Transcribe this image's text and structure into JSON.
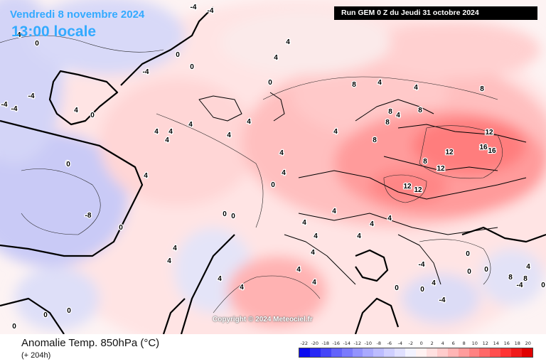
{
  "header": {
    "valid_date": "Vendredi 8 novembre 2024",
    "local_time": "13:00 locale",
    "run_info": "Run GEM 0 Z du Jeudi 31 octobre 2024"
  },
  "map": {
    "copyright": "Copyright © 2024 Meteociel.fr",
    "contour_labels": [
      "-4",
      "-4",
      "0",
      "0",
      "-4",
      "4",
      "-4",
      "0",
      "4",
      "0",
      "4",
      "-4",
      "-4",
      "-4",
      "-8",
      "4",
      "4",
      "0",
      "0",
      "0",
      "4",
      "4",
      "4",
      "4",
      "4",
      "4",
      "0",
      "4",
      "8",
      "4",
      "4",
      "4",
      "8",
      "8",
      "8",
      "8",
      "4",
      "12",
      "12",
      "16",
      "16",
      "12",
      "12",
      "12",
      "8",
      "4",
      "4",
      "4",
      "8",
      "4",
      "4",
      "4",
      "4",
      "4",
      "4",
      "4",
      "4",
      "4",
      "4",
      "0",
      "0",
      "0",
      "0",
      "0",
      "0",
      "0",
      "-4",
      "0",
      "4",
      "8",
      "8",
      "-4",
      "0",
      "4",
      "-4",
      "0",
      "0",
      "0"
    ]
  },
  "footer": {
    "variable": "Anomalie Temp. 850hPa (°C)",
    "lead_time": "(+ 204h)"
  },
  "legend": {
    "ticks": [
      "-22",
      "-20",
      "-18",
      "-16",
      "-14",
      "-12",
      "-10",
      "-8",
      "-6",
      "-4",
      "-2",
      "0",
      "2",
      "4",
      "6",
      "8",
      "10",
      "12",
      "14",
      "16",
      "18",
      "20"
    ],
    "colors": [
      "#0b0bf0",
      "#2828f5",
      "#4545f8",
      "#6262fa",
      "#7a7afc",
      "#9393fd",
      "#a9a9fe",
      "#bcbcff",
      "#cfcfff",
      "#e0e0ff",
      "#f2f2ff",
      "#fff2f2",
      "#ffe0e0",
      "#ffcccc",
      "#ffb5b5",
      "#ff9c9c",
      "#ff8282",
      "#ff6868",
      "#ff4e4e",
      "#ff3333",
      "#f01a1a",
      "#e00000"
    ]
  }
}
